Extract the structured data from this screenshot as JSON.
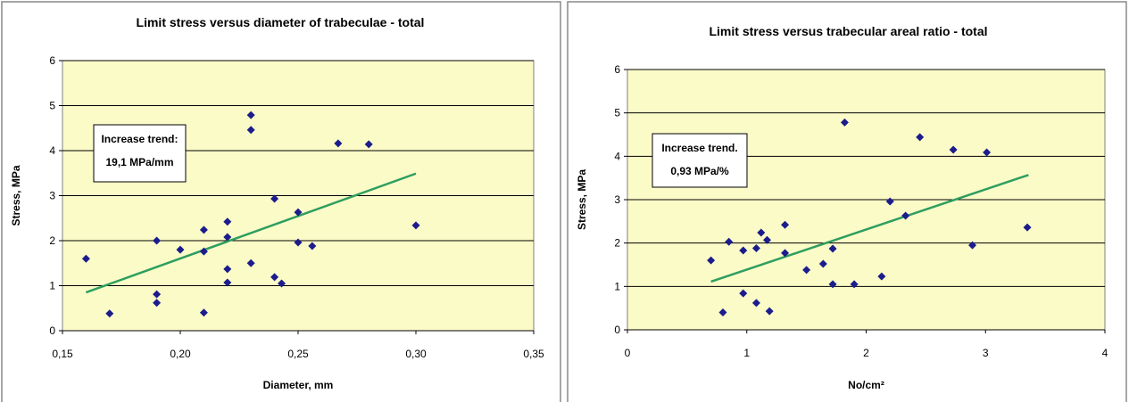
{
  "chart_data": [
    {
      "type": "scatter",
      "title": "Limit stress versus diameter of trabeculae - total",
      "xlabel": "Diameter, mm",
      "ylabel": "Stress, MPa",
      "x": [
        0.16,
        0.17,
        0.19,
        0.19,
        0.19,
        0.2,
        0.21,
        0.21,
        0.21,
        0.22,
        0.22,
        0.22,
        0.22,
        0.23,
        0.23,
        0.23,
        0.24,
        0.24,
        0.243,
        0.25,
        0.25,
        0.256,
        0.267,
        0.28,
        0.3
      ],
      "values": [
        1.6,
        0.38,
        2.0,
        0.81,
        0.62,
        1.8,
        2.24,
        1.76,
        0.4,
        2.42,
        2.08,
        1.37,
        1.07,
        4.79,
        4.46,
        1.5,
        2.93,
        1.19,
        1.05,
        2.63,
        1.96,
        1.88,
        4.16,
        4.14,
        2.34
      ],
      "color": "#1c1c8c",
      "trend": {
        "x": [
          0.16,
          0.3
        ],
        "values": [
          0.85,
          3.49
        ],
        "color": "#2e9e5e"
      },
      "annotation": [
        "Increase trend:",
        "19,1 MPa/mm"
      ],
      "xlim": [
        0.15,
        0.35
      ],
      "xticks": [
        {
          "value": 0.15,
          "label": "0,15"
        },
        {
          "value": 0.2,
          "label": "0,20"
        },
        {
          "value": 0.25,
          "label": "0,25"
        },
        {
          "value": 0.3,
          "label": "0,30"
        },
        {
          "value": 0.35,
          "label": "0,35"
        }
      ],
      "ylim": [
        0,
        6
      ],
      "yticks": [
        0,
        1,
        2,
        3,
        4,
        5,
        6
      ],
      "grid": true,
      "background": "#fbfbc8"
    },
    {
      "type": "scatter",
      "title": "Limit stress versus trabecular areal ratio - total",
      "xlabel": "No/cm²",
      "ylabel": "Stress, MPa",
      "x": [
        0.7,
        0.8,
        0.85,
        0.97,
        0.97,
        1.08,
        1.12,
        1.08,
        1.17,
        1.19,
        1.32,
        1.32,
        1.5,
        1.64,
        1.72,
        1.72,
        1.82,
        1.9,
        2.13,
        2.2,
        2.33,
        2.45,
        2.73,
        2.89,
        3.01,
        3.35
      ],
      "values": [
        1.6,
        0.4,
        2.03,
        1.83,
        0.84,
        1.88,
        2.24,
        0.62,
        2.07,
        0.43,
        2.42,
        1.77,
        1.38,
        1.52,
        1.87,
        1.05,
        4.78,
        1.05,
        1.23,
        2.96,
        2.63,
        4.44,
        4.15,
        1.95,
        4.09,
        2.36
      ],
      "color": "#1c1c8c",
      "trend": {
        "x": [
          0.7,
          3.36
        ],
        "values": [
          1.11,
          3.57
        ],
        "color": "#2e9e5e"
      },
      "annotation": [
        "Increase trend.",
        "0,93 MPa/%"
      ],
      "xlim": [
        0,
        4
      ],
      "xticks": [
        0,
        1,
        2,
        3,
        4
      ],
      "ylim": [
        0,
        6
      ],
      "yticks": [
        0,
        1,
        2,
        3,
        4,
        5,
        6
      ],
      "grid": true,
      "background": "#fbfbc8"
    }
  ]
}
